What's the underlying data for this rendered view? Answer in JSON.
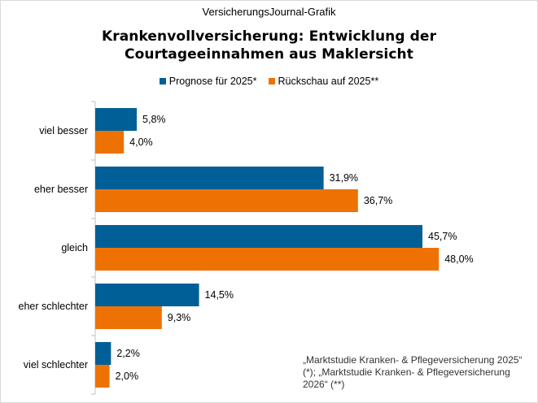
{
  "header": {
    "supertitle": "VersicherungsJournal-Grafik",
    "title_line1": "Krankenvollversicherung: Entwicklung der",
    "title_line2": "Courtageeinnahmen aus Maklersicht"
  },
  "colors": {
    "prognose": "#005f96",
    "rueckschau": "#ee7203",
    "axis": "#bfbfbf"
  },
  "chart_data": {
    "type": "bar",
    "orientation": "horizontal",
    "title": "Krankenvollversicherung: Entwicklung der Courtageeinnahmen aus Maklersicht",
    "categories": [
      "viel besser",
      "eher besser",
      "gleich",
      "eher schlechter",
      "viel schlechter"
    ],
    "series": [
      {
        "name": "Prognose für 2025*",
        "values": [
          5.8,
          31.9,
          45.7,
          14.5,
          2.2
        ],
        "labels": [
          "5,8%",
          "31,9%",
          "45,7%",
          "14,5%",
          "2,2%"
        ]
      },
      {
        "name": "Rückschau auf 2025**",
        "values": [
          4.0,
          36.7,
          48.0,
          9.3,
          2.0
        ],
        "labels": [
          "4,0%",
          "36,7%",
          "48,0%",
          "9,3%",
          "2,0%"
        ]
      }
    ],
    "xlim": [
      0,
      50
    ],
    "grid": false,
    "legend_position": "top"
  },
  "source": "„Marktstudie Kranken- & Pflegeversicherung 2025“ (*); „Marktstudie Kranken- & Pflegeversicherung 2026“ (**)"
}
